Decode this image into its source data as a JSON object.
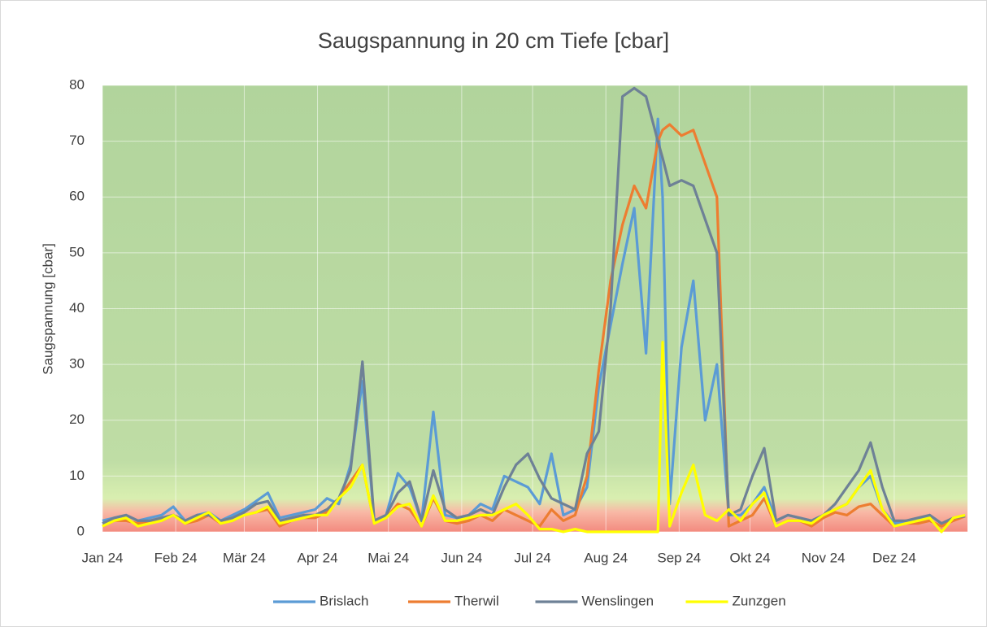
{
  "chart_data": {
    "type": "line",
    "title": "Saugspannung in 20 cm Tiefe [cbar]",
    "y_label": "Saugspannung [cbar]",
    "x": [
      0,
      5,
      10,
      15,
      20,
      25,
      30,
      35,
      40,
      45,
      50,
      55,
      60,
      65,
      70,
      75,
      80,
      85,
      90,
      95,
      100,
      105,
      110,
      115,
      120,
      125,
      130,
      135,
      140,
      145,
      150,
      155,
      160,
      165,
      170,
      175,
      180,
      185,
      190,
      195,
      200,
      205,
      210,
      215,
      220,
      225,
      230,
      235,
      237,
      240,
      245,
      250,
      255,
      260,
      265,
      270,
      275,
      280,
      285,
      290,
      295,
      300,
      305,
      310,
      315,
      320,
      325,
      330,
      335,
      340,
      345,
      350,
      355,
      360,
      365
    ],
    "xlim": [
      0,
      366
    ],
    "xticks": [
      {
        "value": 0,
        "label": "Jan 24"
      },
      {
        "value": 31,
        "label": "Feb 24"
      },
      {
        "value": 60,
        "label": "Mär 24"
      },
      {
        "value": 91,
        "label": "Apr 24"
      },
      {
        "value": 121,
        "label": "Mai 24"
      },
      {
        "value": 152,
        "label": "Jun 24"
      },
      {
        "value": 182,
        "label": "Jul 24"
      },
      {
        "value": 213,
        "label": "Aug 24"
      },
      {
        "value": 244,
        "label": "Sep 24"
      },
      {
        "value": 274,
        "label": "Okt 24"
      },
      {
        "value": 305,
        "label": "Nov 24"
      },
      {
        "value": 335,
        "label": "Dez 24"
      }
    ],
    "ylim": [
      0,
      80
    ],
    "yticks": [
      0,
      10,
      20,
      30,
      40,
      50,
      60,
      70,
      80
    ],
    "grid": true,
    "legend": "bottom",
    "series": [
      {
        "name": "Brislach",
        "color": "#5b9bd5",
        "values": [
          2,
          2.5,
          3,
          2,
          2.5,
          3,
          4.5,
          2,
          3,
          3.5,
          2,
          3,
          4,
          5.5,
          7,
          2.5,
          3,
          3.5,
          4,
          6,
          5,
          12,
          27,
          2,
          3,
          10.5,
          8,
          2,
          21.5,
          3,
          2.5,
          3,
          5,
          4,
          10,
          9,
          8,
          5,
          14,
          3,
          4,
          8,
          26,
          37,
          48,
          58,
          32,
          74,
          60,
          5,
          33,
          45,
          20,
          30,
          3,
          3,
          5,
          8,
          2,
          3,
          2.5,
          2,
          3,
          4,
          5,
          8,
          10,
          4,
          1.5,
          2,
          2,
          3,
          1.5,
          2,
          3
        ]
      },
      {
        "name": "Therwil",
        "color": "#ed7d31",
        "values": [
          1,
          2,
          2,
          1.5,
          2,
          2,
          3,
          1.5,
          2,
          3,
          1.5,
          2,
          3,
          3.5,
          4,
          1,
          2,
          2.5,
          2.5,
          3.5,
          6,
          9,
          12,
          1.5,
          2.5,
          5,
          4,
          1,
          6,
          2,
          1.5,
          2,
          3,
          2,
          4,
          3,
          2,
          1,
          4,
          2,
          3,
          10,
          29,
          45,
          55,
          62,
          58,
          70,
          72,
          73,
          71,
          72,
          66,
          60,
          1,
          2,
          3,
          6,
          1,
          2,
          2,
          1,
          2.5,
          3.5,
          3,
          4.5,
          5,
          3,
          1,
          1.5,
          1.5,
          2,
          1,
          2,
          2.8
        ]
      },
      {
        "name": "Wenslingen",
        "color": "#6e8196",
        "values": [
          1.5,
          2.5,
          3,
          2,
          2,
          2.5,
          3,
          2,
          3,
          3,
          2,
          2.5,
          3.5,
          5,
          5.5,
          2,
          2.5,
          3,
          3,
          4,
          6,
          11,
          30.5,
          2,
          3,
          7,
          9,
          2,
          11,
          4,
          2.5,
          3,
          4,
          3,
          8,
          12,
          14,
          9.5,
          6,
          5,
          4,
          14,
          18,
          40,
          78,
          79.5,
          78,
          70,
          67,
          62,
          63,
          62,
          56,
          50,
          3,
          4,
          10,
          15,
          2,
          3,
          2.5,
          2,
          3,
          5,
          8,
          11,
          16,
          8,
          2,
          2,
          2.5,
          3,
          1.5,
          2.5,
          2.8
        ]
      },
      {
        "name": "Zunzgen",
        "color": "#ffff00",
        "values": [
          1,
          2,
          2.5,
          1,
          1.5,
          2,
          3,
          1.5,
          2.5,
          3.5,
          1.5,
          2,
          3,
          3.5,
          4.5,
          1.5,
          2,
          2.5,
          3,
          3,
          6,
          8,
          12,
          1.5,
          2.5,
          4.5,
          5,
          1,
          6.5,
          2,
          2,
          2.5,
          3,
          3,
          4,
          5,
          3,
          0.5,
          0.5,
          0,
          0.5,
          0,
          0,
          0,
          0,
          0,
          0,
          0,
          34,
          1,
          7,
          12,
          3,
          2,
          4,
          2,
          5,
          7,
          1,
          2,
          2,
          1.5,
          3,
          4,
          5,
          8,
          11,
          4,
          1,
          1.5,
          2,
          2.5,
          0,
          2.5,
          3
        ]
      }
    ]
  }
}
